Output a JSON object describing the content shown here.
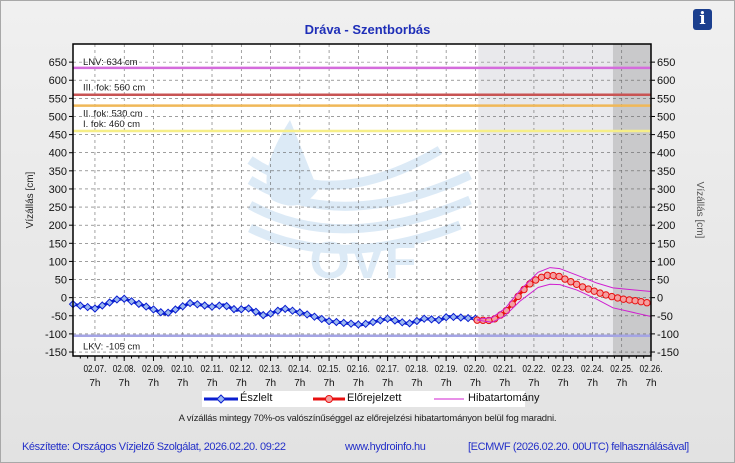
{
  "title": "Dráva - Szentborbás",
  "info_icon": "info-icon",
  "note": "A vízállás mintegy 70%-os valószínűséggel az előrejelzési hibatartományon belül fog maradni.",
  "footer": {
    "author": "Készítette: Országos Vízjelző Szolgálat, 2026.02.20. 09:22",
    "website": "www.hydroinfo.hu",
    "model": "[ECMWF (2026.02.20. 00UTC) felhasználásával]"
  },
  "watermark": "OVF",
  "chart_data": {
    "type": "line",
    "title": "Dráva - Szentborbás",
    "ylabel": "Vízállás [cm]",
    "ylabel_right": "Vízállás [cm]",
    "x_unit": "days since 02.07. 7h",
    "xlim": [
      -0.75,
      19
    ],
    "ylim": [
      -161,
      700
    ],
    "yticks": [
      650,
      600,
      550,
      500,
      450,
      400,
      350,
      300,
      250,
      200,
      150,
      100,
      50,
      0,
      -50,
      -100,
      -150
    ],
    "xtick_dates": [
      "02.07.",
      "02.08.",
      "02.09.",
      "02.10.",
      "02.11.",
      "02.12.",
      "02.13.",
      "02.14.",
      "02.15.",
      "02.16.",
      "02.17.",
      "02.18.",
      "02.19.",
      "02.20.",
      "02.21.",
      "02.22.",
      "02.23.",
      "02.24.",
      "02.25.",
      "02.26."
    ],
    "xtick_hour": "7h",
    "grid": true,
    "forecast_region_start": 13.1,
    "late_forecast_region_start": 17.7,
    "thresholds": [
      {
        "label": "LNV: 634 cm",
        "value": 634,
        "color": "#d46cdc"
      },
      {
        "label": "III. fok: 560 cm",
        "value": 560,
        "color": "#c85454"
      },
      {
        "label": "II. fok: 530 cm",
        "value": 530,
        "color": "#f0b858"
      },
      {
        "label": "I. fok: 460 cm",
        "value": 460,
        "color": "#f6ee88"
      },
      {
        "label": "LKV: -105 cm",
        "value": -105,
        "color": "#a4a4e4"
      }
    ],
    "legend": [
      {
        "name": "Észlelt",
        "color": "#0a1ed0"
      },
      {
        "name": "Előrejelzett",
        "color": "#e81010"
      },
      {
        "name": "Hibatartomány",
        "color": "#d020d0"
      }
    ],
    "series": [
      {
        "name": "Észlelt",
        "color": "#0a1ed0",
        "x": [
          -0.75,
          0,
          0.75,
          1,
          1.6,
          2.4,
          3.25,
          4,
          4.4,
          4.85,
          5.2,
          5.8,
          6.45,
          7.2,
          8,
          9.1,
          10,
          10.7,
          11.25,
          11.8,
          12.05,
          13.0
        ],
        "y": [
          -18,
          -30,
          -5,
          -3,
          -20,
          -45,
          -15,
          -25,
          -20,
          -35,
          -28,
          -50,
          -30,
          -45,
          -65,
          -75,
          -58,
          -72,
          -58,
          -62,
          -52,
          -58
        ]
      },
      {
        "name": "Előrejelzett",
        "color": "#e81010",
        "x": [
          13.06,
          13.57,
          14.01,
          14.29,
          14.52,
          14.8,
          15.14,
          15.48,
          15.82,
          16.23,
          16.68,
          17.16,
          17.6,
          18.04,
          18.52,
          19
        ],
        "y": [
          -62,
          -63,
          -40,
          -15,
          10,
          35,
          53,
          62,
          60,
          45,
          29,
          15,
          4,
          -4,
          -9,
          -16
        ]
      },
      {
        "name": "Hibatartomány felső",
        "color": "#d020d0",
        "x": [
          13.06,
          13.57,
          14.01,
          14.52,
          15.14,
          15.55,
          15.89,
          16.47,
          17.16,
          17.7,
          19
        ],
        "y": [
          -60,
          -55,
          -30,
          20,
          70,
          83,
          80,
          62,
          40,
          27,
          17
        ]
      },
      {
        "name": "Hibatartomány alsó",
        "color": "#d020d0",
        "x": [
          13.06,
          13.57,
          14.01,
          14.52,
          15.14,
          15.55,
          15.89,
          16.47,
          17.16,
          17.7,
          19
        ],
        "y": [
          -62,
          -68,
          -50,
          -10,
          28,
          37,
          36,
          21,
          -5,
          -28,
          -52
        ]
      }
    ]
  }
}
